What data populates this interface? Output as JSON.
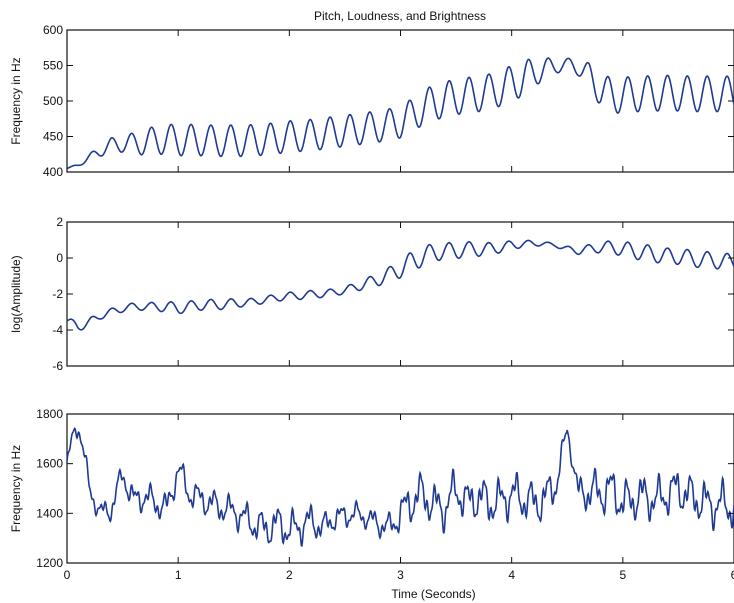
{
  "figure": {
    "title": "Pitch, Loudness, and Brightness"
  },
  "chart_data": [
    {
      "type": "line",
      "title": "Pitch, Loudness, and Brightness",
      "ylabel": "Frequency in Hz",
      "xlabel": "",
      "xlim": [
        0,
        6
      ],
      "ylim": [
        400,
        600
      ],
      "yticks": [
        400,
        450,
        500,
        550,
        600
      ],
      "xticks": [
        0,
        1,
        2,
        3,
        4,
        5,
        6
      ],
      "xtick_labels_shown": false,
      "grid": false,
      "color": "#1f3a93",
      "series": [
        {
          "x": [
            0,
            0.1,
            0.2,
            0.3,
            0.4,
            0.5,
            0.6,
            0.7,
            0.8,
            0.9,
            1.0,
            1.1,
            1.2,
            1.3,
            1.4,
            1.5,
            1.6,
            1.7,
            1.8,
            1.9,
            2.0,
            2.1,
            2.2,
            2.3,
            2.4,
            2.5,
            2.6,
            2.7,
            2.8,
            2.9,
            3.0,
            3.1,
            3.2,
            3.3,
            3.4,
            3.5,
            3.6,
            3.7,
            3.8,
            3.9,
            4.0,
            4.1,
            4.2,
            4.3,
            4.4,
            4.5,
            4.6,
            4.7,
            4.8,
            4.9,
            5.0,
            5.1,
            5.2,
            5.3,
            5.4,
            5.5,
            5.6,
            5.7,
            5.8,
            5.9,
            6.0
          ],
          "values": [
            405,
            410,
            420,
            430,
            438,
            440,
            440,
            442,
            445,
            446,
            445,
            445,
            445,
            444,
            444,
            444,
            444,
            445,
            446,
            448,
            450,
            451,
            452,
            454,
            456,
            458,
            460,
            462,
            464,
            467,
            470,
            480,
            490,
            498,
            502,
            506,
            508,
            510,
            513,
            518,
            525,
            532,
            540,
            546,
            549,
            552,
            548,
            535,
            515,
            508,
            508,
            510,
            510,
            511,
            511,
            511,
            510,
            510,
            510,
            510,
            510
          ],
          "osc_amp": [
            0,
            2,
            5,
            8,
            10,
            12,
            15,
            18,
            20,
            21,
            22,
            22,
            22,
            22,
            22,
            22,
            22,
            22,
            22,
            22,
            22,
            22,
            22,
            22,
            22,
            22,
            22,
            22,
            22,
            22,
            22,
            23,
            24,
            25,
            25,
            25,
            25,
            25,
            25,
            25,
            25,
            25,
            20,
            15,
            10,
            8,
            12,
            18,
            22,
            25,
            25,
            25,
            25,
            25,
            25,
            25,
            25,
            25,
            25,
            25,
            25
          ],
          "osc_freq_hz": 5.6
        }
      ]
    },
    {
      "type": "line",
      "ylabel": "log(Amplitude)",
      "xlabel": "",
      "xlim": [
        0,
        6
      ],
      "ylim": [
        -6,
        2
      ],
      "yticks": [
        -6,
        -4,
        -2,
        0,
        2
      ],
      "xticks": [
        0,
        1,
        2,
        3,
        4,
        5,
        6
      ],
      "xtick_labels_shown": false,
      "grid": false,
      "color": "#1f3a93",
      "series": [
        {
          "x": [
            0,
            0.1,
            0.2,
            0.3,
            0.4,
            0.5,
            0.6,
            0.7,
            0.8,
            0.9,
            1.0,
            1.1,
            1.2,
            1.3,
            1.4,
            1.5,
            1.6,
            1.7,
            1.8,
            1.9,
            2.0,
            2.1,
            2.2,
            2.3,
            2.4,
            2.5,
            2.6,
            2.7,
            2.8,
            2.9,
            3.0,
            3.1,
            3.2,
            3.3,
            3.4,
            3.5,
            3.6,
            3.7,
            3.8,
            3.9,
            4.0,
            4.1,
            4.2,
            4.3,
            4.4,
            4.5,
            4.6,
            4.7,
            4.8,
            4.9,
            5.0,
            5.1,
            5.2,
            5.3,
            5.4,
            5.5,
            5.6,
            5.7,
            5.8,
            5.9,
            6.0
          ],
          "values": [
            -3.5,
            -3.8,
            -3.6,
            -3.2,
            -3.0,
            -2.8,
            -2.7,
            -2.7,
            -2.7,
            -2.7,
            -2.8,
            -2.7,
            -2.6,
            -2.6,
            -2.6,
            -2.5,
            -2.5,
            -2.4,
            -2.3,
            -2.2,
            -2.1,
            -2.1,
            -2.0,
            -2.0,
            -1.9,
            -1.8,
            -1.6,
            -1.4,
            -1.2,
            -0.9,
            -0.6,
            -0.2,
            0.1,
            0.3,
            0.4,
            0.4,
            0.5,
            0.5,
            0.5,
            0.6,
            0.7,
            0.8,
            0.8,
            0.8,
            0.7,
            0.5,
            0.4,
            0.5,
            0.6,
            0.6,
            0.5,
            0.4,
            0.3,
            0.2,
            0.1,
            0.1,
            0.0,
            -0.1,
            -0.1,
            -0.2,
            -0.2
          ],
          "osc_amp": [
            0.2,
            0.25,
            0.25,
            0.2,
            0.2,
            0.2,
            0.2,
            0.2,
            0.25,
            0.3,
            0.3,
            0.3,
            0.3,
            0.3,
            0.25,
            0.25,
            0.2,
            0.2,
            0.2,
            0.2,
            0.2,
            0.2,
            0.2,
            0.2,
            0.2,
            0.2,
            0.25,
            0.3,
            0.35,
            0.4,
            0.5,
            0.55,
            0.55,
            0.5,
            0.45,
            0.45,
            0.4,
            0.4,
            0.35,
            0.3,
            0.25,
            0.2,
            0.15,
            0.1,
            0.1,
            0.15,
            0.2,
            0.25,
            0.3,
            0.35,
            0.4,
            0.45,
            0.45,
            0.45,
            0.45,
            0.45,
            0.45,
            0.45,
            0.45,
            0.45,
            0.45
          ],
          "osc_freq_hz": 5.6
        }
      ]
    },
    {
      "type": "line",
      "ylabel": "Frequency in Hz",
      "xlabel": "Time (Seconds)",
      "xlim": [
        0,
        6
      ],
      "ylim": [
        1200,
        1800
      ],
      "yticks": [
        1200,
        1400,
        1600,
        1800
      ],
      "xticks": [
        0,
        1,
        2,
        3,
        4,
        5,
        6
      ],
      "xtick_labels_shown": true,
      "grid": false,
      "color": "#1f3a93",
      "series": [
        {
          "x": [
            0,
            0.05,
            0.1,
            0.15,
            0.2,
            0.3,
            0.4,
            0.5,
            0.6,
            0.7,
            0.8,
            0.9,
            1.0,
            1.1,
            1.2,
            1.3,
            1.4,
            1.5,
            1.6,
            1.7,
            1.8,
            1.9,
            2.0,
            2.1,
            2.2,
            2.3,
            2.4,
            2.5,
            2.6,
            2.7,
            2.8,
            2.9,
            3.0,
            3.1,
            3.2,
            3.3,
            3.4,
            3.5,
            3.6,
            3.7,
            3.8,
            3.9,
            4.0,
            4.1,
            4.2,
            4.3,
            4.4,
            4.5,
            4.6,
            4.7,
            4.8,
            4.9,
            5.0,
            5.1,
            5.2,
            5.3,
            5.4,
            5.5,
            5.6,
            5.7,
            5.8,
            5.9,
            6.0
          ],
          "values": [
            1600,
            1700,
            1760,
            1650,
            1500,
            1400,
            1420,
            1560,
            1450,
            1470,
            1440,
            1420,
            1580,
            1480,
            1460,
            1440,
            1420,
            1410,
            1380,
            1350,
            1340,
            1360,
            1330,
            1350,
            1370,
            1340,
            1380,
            1390,
            1400,
            1380,
            1360,
            1340,
            1400,
            1450,
            1480,
            1430,
            1420,
            1500,
            1440,
            1470,
            1440,
            1450,
            1480,
            1460,
            1440,
            1460,
            1520,
            1740,
            1480,
            1490,
            1480,
            1500,
            1440,
            1460,
            1470,
            1450,
            1480,
            1500,
            1470,
            1450,
            1430,
            1440,
            1420
          ],
          "osc_amp": [
            20,
            30,
            30,
            30,
            30,
            30,
            35,
            35,
            40,
            40,
            40,
            40,
            40,
            40,
            40,
            40,
            40,
            40,
            45,
            45,
            50,
            50,
            50,
            50,
            45,
            40,
            35,
            35,
            30,
            30,
            35,
            40,
            50,
            60,
            60,
            60,
            60,
            60,
            60,
            60,
            60,
            60,
            60,
            60,
            60,
            60,
            50,
            20,
            40,
            60,
            60,
            60,
            60,
            60,
            60,
            60,
            60,
            60,
            60,
            60,
            60,
            60,
            60
          ],
          "osc_freq_hz": 7.0
        }
      ]
    }
  ]
}
